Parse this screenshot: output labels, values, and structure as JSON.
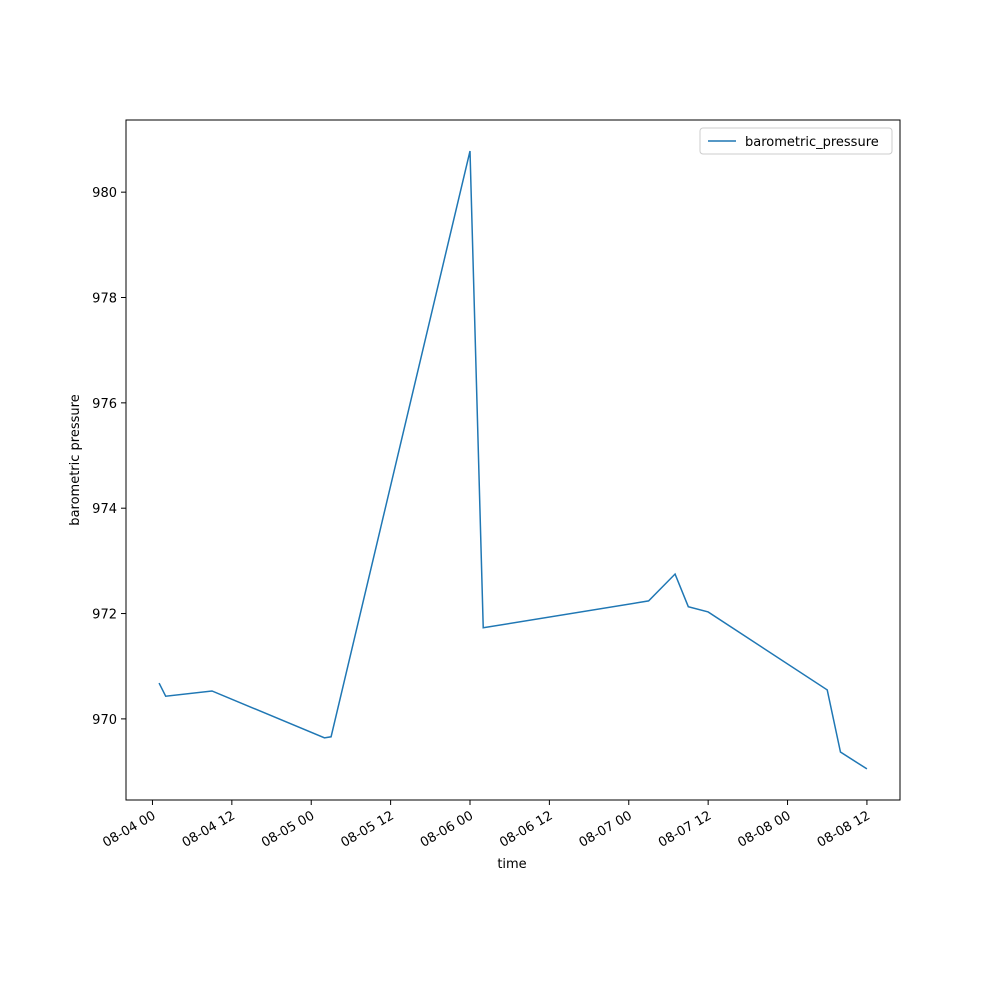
{
  "chart_data": {
    "type": "line",
    "x_label": "time",
    "y_label": "barometric pressure",
    "x": [
      "08-04 01",
      "08-04 02",
      "08-04 09",
      "08-05 02",
      "08-05 03",
      "08-06 00",
      "08-06 02",
      "08-07 03",
      "08-07 07",
      "08-07 09",
      "08-07 12",
      "08-08 06",
      "08-08 08",
      "08-08 12"
    ],
    "series": [
      {
        "name": "barometric_pressure",
        "color": "#1f77b4",
        "values": [
          970.68,
          970.43,
          970.53,
          969.64,
          969.66,
          980.78,
          971.73,
          972.24,
          972.75,
          972.13,
          972.03,
          970.55,
          969.37,
          969.05
        ]
      }
    ],
    "xlim": [
      "08-03 20",
      "08-08 17"
    ],
    "xticks": [
      "08-04 00",
      "08-04 12",
      "08-05 00",
      "08-05 12",
      "08-06 00",
      "08-06 12",
      "08-07 00",
      "08-07 12",
      "08-08 00",
      "08-08 12"
    ],
    "ylim": [
      968.46,
      981.37
    ],
    "yticks": [
      970,
      972,
      974,
      976,
      978,
      980
    ],
    "legend": "upper right"
  }
}
